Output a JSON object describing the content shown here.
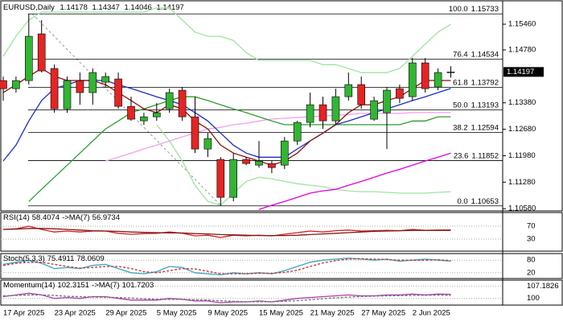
{
  "chart_data": {
    "type": "candlestick",
    "symbol": "EURUSD,Daily",
    "quote": {
      "open": 1.14178,
      "high": 1.14347,
      "low": 1.14046,
      "close": 1.14197
    },
    "categories": [
      "17 Apr 2025",
      null,
      null,
      null,
      "23 Apr 2025",
      null,
      null,
      null,
      "29 Apr 2025",
      null,
      null,
      null,
      "5 May 2025",
      null,
      null,
      null,
      "9 May 2025",
      null,
      null,
      null,
      "15 May 2025",
      null,
      null,
      null,
      "21 May 2025",
      null,
      null,
      null,
      "27 May 2025",
      null,
      null,
      null,
      "2 Jun 2025",
      null,
      null,
      null
    ],
    "open": [
      1.13968,
      1.13755,
      1.13968,
      1.15204,
      1.14288,
      1.13222,
      1.13968,
      1.1365,
      1.13926,
      1.14011,
      1.13286,
      1.12903,
      1.13009,
      1.13222,
      1.13713,
      1.13009,
      1.12157,
      1.11881,
      1.10879,
      1.11881,
      1.11731,
      1.11774,
      1.11731,
      1.1237,
      1.1286,
      1.13329,
      1.12903,
      1.13542,
      1.13862,
      1.12946,
      1.13116,
      1.13755,
      1.13542,
      1.14437,
      1.13798,
      1.14178
    ],
    "high": [
      1.14075,
      1.14075,
      1.15733,
      1.15566,
      1.14394,
      1.14075,
      1.14181,
      1.14288,
      1.14181,
      1.14181,
      1.13542,
      1.13116,
      1.13372,
      1.13755,
      1.13798,
      1.13542,
      1.12583,
      1.11944,
      1.12051,
      1.11944,
      1.1237,
      1.11838,
      1.12477,
      1.12903,
      1.1365,
      1.13542,
      1.13755,
      1.14181,
      1.14075,
      1.13542,
      1.13798,
      1.13862,
      1.14565,
      1.14565,
      1.14288,
      1.14347
    ],
    "low": [
      1.13436,
      1.1365,
      1.13862,
      1.14181,
      1.13116,
      1.13116,
      1.13329,
      1.13329,
      1.13798,
      1.13222,
      1.12903,
      1.12796,
      1.12903,
      1.13116,
      1.12903,
      1.12051,
      1.11944,
      1.10653,
      1.10772,
      1.11731,
      1.11667,
      1.11518,
      1.11625,
      1.12264,
      1.12732,
      1.1269,
      1.12796,
      1.13436,
      1.13222,
      1.12903,
      1.12157,
      1.13372,
      1.13436,
      1.1365,
      1.13713,
      1.14046
    ],
    "close": [
      1.13755,
      1.13968,
      1.1514,
      1.14224,
      1.13222,
      1.13968,
      1.1365,
      1.14181,
      1.14075,
      1.13286,
      1.12946,
      1.13009,
      1.13116,
      1.1365,
      1.13009,
      1.12157,
      1.12434,
      1.10879,
      1.11881,
      1.11774,
      1.11838,
      1.11667,
      1.1237,
      1.1286,
      1.13329,
      1.12903,
      1.13542,
      1.13862,
      1.13329,
      1.13436,
      1.13713,
      1.13499,
      1.14437,
      1.13755,
      1.14181,
      1.14197
    ],
    "up_color": "#33b533",
    "down_color": "#e52424",
    "ylim": [
      1.1052,
      1.161
    ],
    "yticks": [
      {
        "value": 1.1546,
        "label": "1.15460"
      },
      {
        "value": 1.1478,
        "label": "1.14780"
      },
      {
        "value": 1.1338,
        "label": "1.13380"
      },
      {
        "value": 1.1268,
        "label": "1.12680"
      },
      {
        "value": 1.1198,
        "label": "1.11980"
      },
      {
        "value": 1.1128,
        "label": "1.11280"
      },
      {
        "value": 1.1058,
        "label": "1.10580"
      }
    ],
    "grid": false,
    "fibonacci": [
      {
        "level": "100.0",
        "price": 1.15733
      },
      {
        "level": "76.4",
        "price": 1.14534
      },
      {
        "level": "61.8",
        "price": 1.13792
      },
      {
        "level": "50.0",
        "price": 1.13193
      },
      {
        "level": "38.2",
        "price": 1.12594
      },
      {
        "level": "23.6",
        "price": 1.11852
      },
      {
        "level": "0.0",
        "price": 1.10653
      }
    ],
    "overlays": [
      {
        "color": "#9ee59e",
        "values": [
          1.1461,
          1.1514,
          1.1557,
          1.1578,
          1.1578,
          1.1578,
          1.1578,
          1.1578,
          1.1578,
          1.1578,
          1.1578,
          1.1578,
          1.1589,
          1.1589,
          1.1557,
          1.1525,
          1.1514,
          1.1514,
          1.1503,
          1.1471,
          1.145,
          1.145,
          1.145,
          1.145,
          1.145,
          1.1439,
          1.1439,
          1.1429,
          1.1418,
          1.1418,
          1.1418,
          1.1429,
          1.1461,
          1.1493,
          1.1525,
          1.1546
        ]
      },
      {
        "color": "#9ee59e",
        "values": [
          null,
          null,
          null,
          null,
          null,
          null,
          null,
          null,
          null,
          null,
          null,
          null,
          1.128,
          1.1237,
          1.1184,
          1.112,
          1.1077,
          1.1067,
          1.1099,
          1.113,
          1.1141,
          1.1137,
          1.113,
          1.1124,
          1.112,
          1.1116,
          1.1109,
          1.1105,
          1.1103,
          1.1103,
          1.1101,
          1.1099,
          1.1099,
          1.1099,
          1.1101,
          1.1103
        ]
      },
      {
        "color": "#f0a0f0",
        "values": [
          null,
          null,
          null,
          null,
          null,
          null,
          null,
          null,
          1.1184,
          1.1194,
          1.1205,
          1.1216,
          1.1226,
          1.1237,
          1.1248,
          1.1258,
          1.1269,
          1.1273,
          1.128,
          1.1284,
          1.129,
          1.1295,
          1.1297,
          1.1299,
          1.1301,
          1.1303,
          1.1305,
          1.1307,
          1.131,
          1.131,
          1.131,
          1.131,
          1.1312,
          1.1312,
          1.1312,
          1.1312
        ]
      },
      {
        "color": "#e000e0",
        "values": [
          null,
          null,
          null,
          null,
          null,
          null,
          null,
          null,
          null,
          null,
          null,
          null,
          null,
          null,
          null,
          null,
          null,
          null,
          null,
          null,
          1.1056,
          1.1067,
          1.1077,
          1.1088,
          1.1099,
          1.1105,
          1.1109,
          1.112,
          1.113,
          1.1141,
          1.1152,
          1.1162,
          1.1173,
          1.1184,
          1.1194,
          1.1205
        ]
      },
      {
        "color": "#2e9e2e",
        "values": [
          null,
          null,
          1.1077,
          1.1109,
          1.1141,
          1.1173,
          1.1205,
          1.1237,
          1.1269,
          1.129,
          1.1312,
          1.1322,
          1.1333,
          1.1344,
          1.1354,
          1.1354,
          1.1344,
          1.1333,
          1.1322,
          1.1312,
          1.1301,
          1.129,
          1.128,
          1.128,
          1.128,
          1.128,
          1.128,
          1.128,
          1.128,
          1.128,
          1.128,
          1.128,
          1.129,
          1.129,
          1.1301,
          1.1301
        ]
      },
      {
        "color": "#1a2ec8",
        "values": [
          1.1184,
          1.1226,
          1.129,
          1.1344,
          1.1376,
          1.1386,
          1.1397,
          1.1397,
          1.1397,
          1.1386,
          1.1376,
          1.1365,
          1.1354,
          1.1344,
          1.1333,
          1.1312,
          1.129,
          1.1258,
          1.1226,
          1.1205,
          1.1194,
          1.1194,
          1.1194,
          1.1216,
          1.1237,
          1.1258,
          1.128,
          1.129,
          1.1301,
          1.1312,
          1.1322,
          1.1333,
          1.1344,
          1.1354,
          1.1365,
          1.1376
        ]
      },
      {
        "color": "#8b1010",
        "values": [
          1.1365,
          1.1386,
          1.1408,
          1.1429,
          1.1408,
          1.1397,
          1.1397,
          1.1397,
          1.1386,
          1.1365,
          1.1344,
          1.1322,
          1.1312,
          1.1333,
          1.1322,
          1.129,
          1.1269,
          1.1226,
          1.1205,
          1.1194,
          1.1184,
          1.1173,
          1.1184,
          1.1205,
          1.1237,
          1.1258,
          1.128,
          1.1312,
          1.1333,
          1.1333,
          1.1344,
          1.1354,
          1.1376,
          1.1397,
          1.1397,
          1.1397
        ]
      }
    ],
    "panels": [
      {
        "title_parts": [
          "RSI(14)",
          58.4074,
          "->MA(7)",
          56.9734
        ],
        "ylim": [
          0,
          100
        ],
        "yticks": [
          70,
          30
        ],
        "series": [
          {
            "color": "#d81c1c",
            "values": [
              60,
              62,
              70,
              60,
              52,
              55,
              52,
              55,
              55,
              48,
              45,
              47,
              48,
              52,
              48,
              40,
              42,
              35,
              42,
              40,
              42,
              40,
              45,
              50,
              55,
              52,
              56,
              58,
              55,
              56,
              57,
              56,
              60,
              57,
              58,
              58.4074
            ]
          },
          {
            "color": "#7a1a1a",
            "values": [
              60,
              61,
              63,
              63,
              62,
              60,
              58,
              56,
              55,
              54,
              52,
              51,
              50,
              49,
              49,
              47,
              46,
              44,
              43,
              42,
              41,
              41,
              41,
              42,
              44,
              46,
              48,
              50,
              52,
              54,
              55,
              56,
              57,
              57,
              57,
              56.9734
            ]
          }
        ]
      },
      {
        "title_parts": [
          "Stoch(5,3,3)",
          75.4911,
          78.0609
        ],
        "ylim": [
          0,
          100
        ],
        "yticks": [
          80,
          20
        ],
        "series": [
          {
            "color": "#3aa6c0",
            "values": [
              60,
              70,
              80,
              65,
              40,
              45,
              40,
              55,
              60,
              40,
              20,
              15,
              25,
              50,
              45,
              20,
              15,
              10,
              20,
              15,
              20,
              15,
              30,
              50,
              70,
              80,
              85,
              90,
              85,
              80,
              85,
              75,
              80,
              85,
              80,
              75.4911
            ]
          },
          {
            "color": "#c03030",
            "dash": true,
            "values": [
              55,
              65,
              70,
              70,
              60,
              50,
              42,
              45,
              50,
              50,
              40,
              25,
              20,
              30,
              40,
              38,
              27,
              15,
              15,
              15,
              18,
              17,
              22,
              32,
              50,
              67,
              78,
              85,
              87,
              85,
              83,
              80,
              80,
              80,
              82,
              78.0609
            ]
          }
        ]
      },
      {
        "title_parts": [
          "Momentum(14)",
          102.3151,
          "->MA(7)",
          101.7203
        ],
        "ylim": [
          96.6,
          110.1
        ],
        "yticks": [
          107.1826,
          100
        ],
        "series": [
          {
            "color": "#b03cb0",
            "values": [
              101,
              102,
              103,
              102,
              100,
              100.5,
              100,
              101,
              101,
              100,
              99,
              99,
              99,
              100,
              99.5,
              98.5,
              98.5,
              97.5,
              98,
              98,
              98.5,
              98,
              99,
              100,
              100.5,
              101,
              101.5,
              102,
              101.5,
              101.5,
              102,
              102,
              102.5,
              102,
              102.5,
              102.3151
            ]
          },
          {
            "color": "#707070",
            "dash": true,
            "values": [
              101.5,
              101.7,
              102,
              102,
              101.7,
              101.2,
              101,
              100.8,
              100.7,
              100.5,
              100.2,
              99.8,
              99.5,
              99.5,
              99.5,
              99.2,
              99,
              98.6,
              98.3,
              98.1,
              98.1,
              98.1,
              98.3,
              98.7,
              99.2,
              99.8,
              100.3,
              100.8,
              101.1,
              101.3,
              101.5,
              101.6,
              101.7,
              101.8,
              101.9,
              101.7203
            ]
          }
        ]
      }
    ]
  }
}
